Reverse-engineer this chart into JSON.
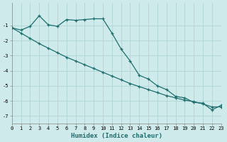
{
  "xlabel": "Humidex (Indice chaleur)",
  "bg_color": "#ceeaea",
  "grid_color": "#b0d4d4",
  "line_color": "#1e6e6e",
  "x_values": [
    0,
    1,
    2,
    3,
    4,
    5,
    6,
    7,
    8,
    9,
    10,
    11,
    12,
    13,
    14,
    15,
    16,
    17,
    18,
    19,
    20,
    21,
    22,
    23
  ],
  "line1_y": [
    -1.15,
    -1.3,
    -1.05,
    -0.35,
    -0.95,
    -1.05,
    -0.6,
    -0.65,
    -0.6,
    -0.55,
    -0.55,
    -1.5,
    -2.55,
    -3.35,
    -4.3,
    -4.55,
    -5.0,
    -5.25,
    -5.7,
    -5.8,
    -6.1,
    -6.15,
    -6.6,
    -6.3
  ],
  "line2_y": [
    -1.15,
    -1.5,
    -1.85,
    -2.2,
    -2.5,
    -2.8,
    -3.1,
    -3.35,
    -3.6,
    -3.85,
    -4.1,
    -4.35,
    -4.6,
    -4.85,
    -5.05,
    -5.25,
    -5.45,
    -5.65,
    -5.8,
    -5.95,
    -6.05,
    -6.2,
    -6.4,
    -6.4
  ],
  "xlim": [
    0,
    23
  ],
  "ylim": [
    -7.5,
    0.5
  ],
  "ytick_vals": [
    -1,
    -2,
    -3,
    -4,
    -5,
    -6,
    -7
  ],
  "xtick_vals": [
    0,
    1,
    2,
    3,
    4,
    5,
    6,
    7,
    8,
    9,
    10,
    11,
    12,
    13,
    14,
    15,
    16,
    17,
    18,
    19,
    20,
    21,
    22,
    23
  ]
}
